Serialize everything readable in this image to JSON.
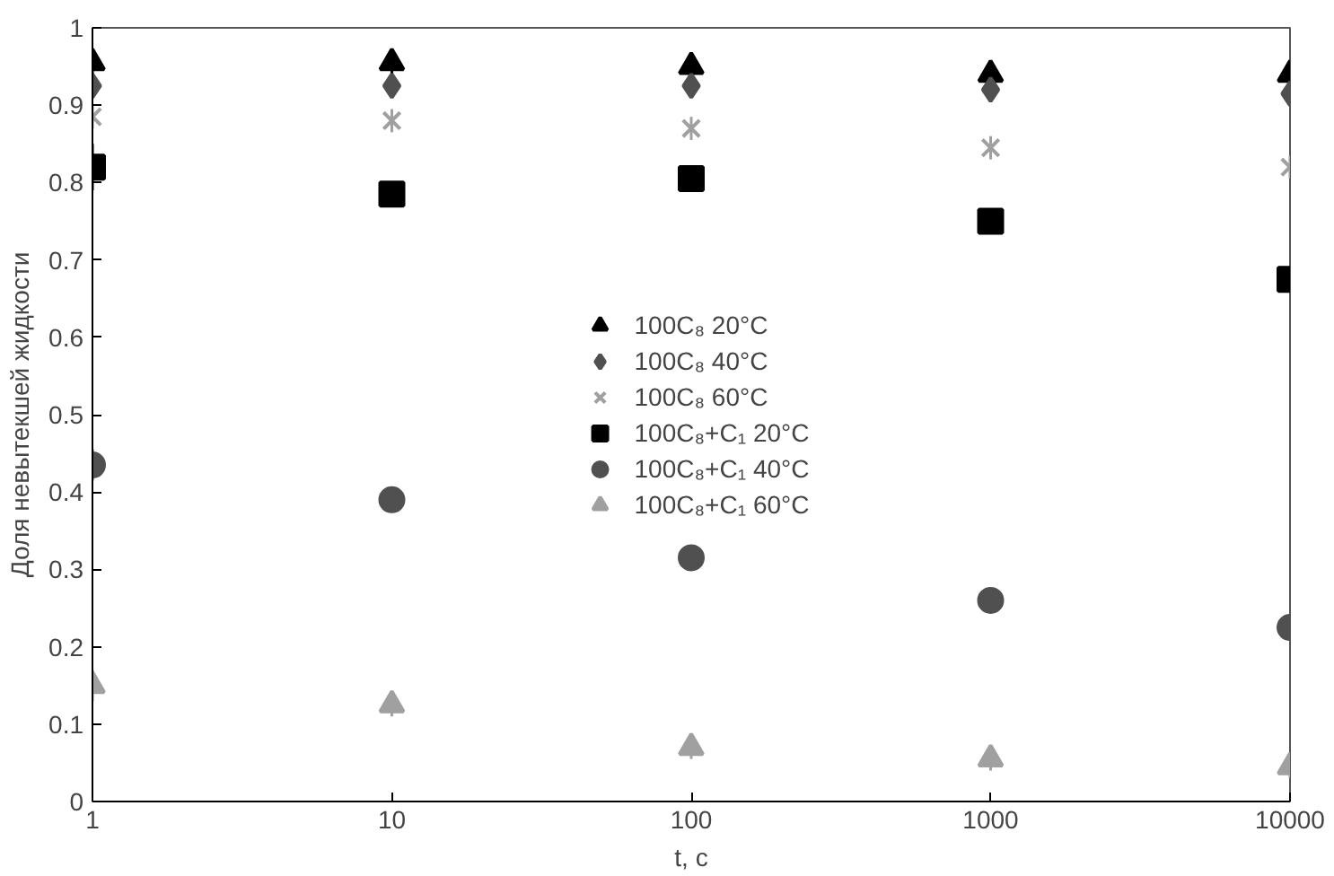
{
  "chart_data": {
    "type": "scatter",
    "xlabel": "t, c",
    "ylabel": "Доля невытекшей жидкости",
    "x": [
      1,
      10,
      100,
      1000,
      10000
    ],
    "log": "x",
    "xlim": [
      1,
      10000
    ],
    "xticks": [
      1,
      10,
      100,
      1000,
      10000
    ],
    "ylim": [
      0,
      1
    ],
    "yticks": [
      0,
      0.1,
      0.2,
      0.3,
      0.4,
      0.5,
      0.6,
      0.7,
      0.8,
      0.9,
      1
    ],
    "grid": false,
    "legend": "center",
    "series": [
      {
        "name": "100C₈ 20°C",
        "color": "#000000",
        "marker": "triangle",
        "values": [
          0.955,
          0.955,
          0.95,
          0.94,
          0.94
        ],
        "errors": [
          0.015,
          0.015,
          0.015,
          0.015,
          0.015
        ]
      },
      {
        "name": "100C₈ 40°C",
        "color": "#505050",
        "marker": "diamond",
        "values": [
          0.925,
          0.925,
          0.925,
          0.92,
          0.915
        ],
        "errors": [
          0.015,
          0.015,
          0.015,
          0.015,
          0.015
        ]
      },
      {
        "name": "100C₈ 60°C",
        "color": "#a0a0a0",
        "marker": "cross",
        "values": [
          0.885,
          0.88,
          0.87,
          0.845,
          0.82
        ],
        "errors": [
          0.015,
          0.015,
          0.015,
          0.015,
          0.015
        ]
      },
      {
        "name": "100C₈+C₁ 20°C",
        "color": "#000000",
        "marker": "square",
        "values": [
          0.82,
          0.785,
          0.805,
          0.75,
          0.675
        ],
        "errors": [
          0.03,
          0.015,
          0.015,
          0.015,
          0.015
        ]
      },
      {
        "name": "100C₈+C₁ 40°C",
        "color": "#505050",
        "marker": "circle",
        "values": [
          0.435,
          0.39,
          0.315,
          0.26,
          0.225
        ],
        "errors": [
          0.02,
          0.015,
          0.015,
          0.015,
          0.015
        ]
      },
      {
        "name": "100C₈+C₁ 60°C",
        "color": "#a0a0a0",
        "marker": "triangle",
        "values": [
          0.15,
          0.125,
          0.07,
          0.055,
          0.045
        ],
        "errors": [
          0.02,
          0.015,
          0.015,
          0.015,
          0.015
        ]
      }
    ]
  }
}
